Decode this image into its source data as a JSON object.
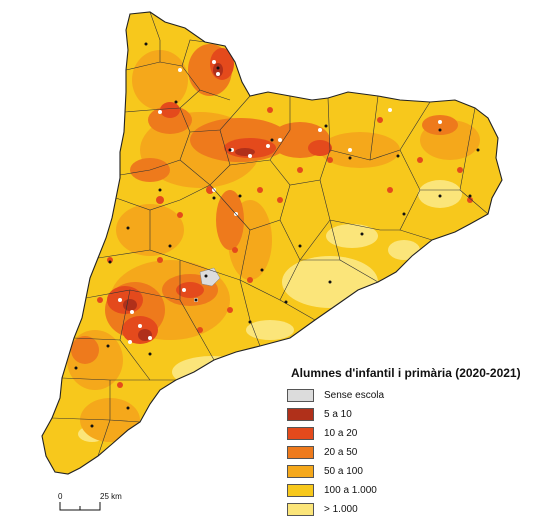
{
  "legend": {
    "title": "Alumnes d'infantil i primària (2020-2021)",
    "items": [
      {
        "label": "Sense escola",
        "color": "#dcdcdc"
      },
      {
        "label": "5 a 10",
        "color": "#b0301a"
      },
      {
        "label": "10 a 20",
        "color": "#e44a1c"
      },
      {
        "label": "20 a 50",
        "color": "#ee7a1c"
      },
      {
        "label": "50 a 100",
        "color": "#f5a81b"
      },
      {
        "label": "100 a 1.000",
        "color": "#f7c81c"
      },
      {
        "label": "> 1.000",
        "color": "#fbe57a"
      }
    ]
  },
  "scale": {
    "start_label": "0",
    "end_label": "25 km"
  }
}
